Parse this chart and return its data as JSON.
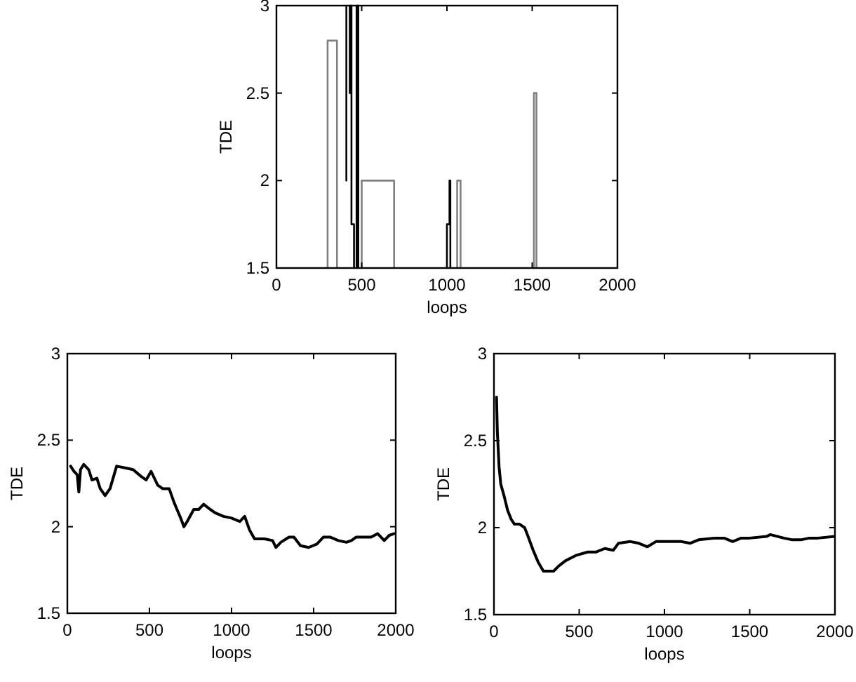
{
  "chart_data": [
    {
      "type": "line",
      "xlabel": "loops",
      "ylabel": "TDE",
      "xlim": [
        0,
        2000
      ],
      "ylim": [
        1.5,
        3
      ],
      "xticks": [
        0,
        500,
        1000,
        1500,
        2000
      ],
      "yticks": [
        1.5,
        2,
        2.5,
        3
      ],
      "grid": false,
      "line_style": "solid",
      "series": [
        {
          "color": "#808080",
          "x": [
            300,
            300,
            355,
            355
          ],
          "values": [
            1.5,
            2.8,
            2.8,
            1.5
          ]
        },
        {
          "color": "#808080",
          "x": [
            500,
            500,
            690,
            690
          ],
          "values": [
            1.5,
            2,
            2,
            1.5
          ]
        },
        {
          "color": "#808080",
          "x": [
            1060,
            1060,
            1080,
            1080
          ],
          "values": [
            1.5,
            2,
            2,
            1.5
          ]
        },
        {
          "color": "#808080",
          "x": [
            1510,
            1510,
            1525,
            1525
          ],
          "values": [
            1.5,
            2.5,
            2.5,
            1.5
          ]
        },
        {
          "color": "#000000",
          "x": [
            410,
            410
          ],
          "values": [
            2,
            3
          ]
        },
        {
          "color": "#000000",
          "x": [
            430,
            430,
            440,
            440,
            455,
            455
          ],
          "values": [
            2.5,
            3,
            3,
            1.75,
            1.75,
            1.5
          ]
        },
        {
          "color": "#000000",
          "x": [
            470,
            470,
            480,
            480
          ],
          "values": [
            1.5,
            3,
            3,
            1.5
          ]
        },
        {
          "color": "#000000",
          "x": [
            1000,
            1000,
            1015,
            1015,
            1020,
            1020
          ],
          "values": [
            1.5,
            1.75,
            1.75,
            2,
            2,
            1.5
          ]
        }
      ]
    },
    {
      "type": "line",
      "xlabel": "loops",
      "ylabel": "TDE",
      "xlim": [
        0,
        2000
      ],
      "ylim": [
        1.5,
        3
      ],
      "xticks": [
        0,
        500,
        1000,
        1500,
        2000
      ],
      "yticks": [
        1.5,
        2,
        2.5,
        3
      ],
      "grid": false,
      "line_style": "solid",
      "series": [
        {
          "color": "#000000",
          "x": [
            20,
            40,
            60,
            70,
            80,
            100,
            130,
            150,
            180,
            200,
            230,
            260,
            300,
            350,
            400,
            450,
            480,
            510,
            550,
            580,
            620,
            650,
            690,
            710,
            730,
            770,
            800,
            830,
            870,
            900,
            950,
            1000,
            1050,
            1080,
            1110,
            1140,
            1200,
            1250,
            1270,
            1300,
            1350,
            1380,
            1420,
            1470,
            1520,
            1560,
            1600,
            1650,
            1700,
            1730,
            1760,
            1800,
            1850,
            1890,
            1930,
            1960,
            1990
          ],
          "values": [
            2.35,
            2.32,
            2.3,
            2.2,
            2.33,
            2.36,
            2.33,
            2.27,
            2.28,
            2.22,
            2.18,
            2.22,
            2.35,
            2.34,
            2.33,
            2.29,
            2.27,
            2.32,
            2.24,
            2.22,
            2.22,
            2.14,
            2.05,
            2.0,
            2.03,
            2.1,
            2.1,
            2.13,
            2.1,
            2.08,
            2.06,
            2.05,
            2.03,
            2.06,
            1.98,
            1.93,
            1.93,
            1.92,
            1.88,
            1.91,
            1.94,
            1.94,
            1.89,
            1.88,
            1.9,
            1.94,
            1.94,
            1.92,
            1.91,
            1.92,
            1.94,
            1.94,
            1.94,
            1.96,
            1.92,
            1.95,
            1.96
          ]
        }
      ]
    },
    {
      "type": "line",
      "xlabel": "loops",
      "ylabel": "TDE",
      "xlim": [
        0,
        2000
      ],
      "ylim": [
        1.5,
        3
      ],
      "xticks": [
        0,
        500,
        1000,
        1500,
        2000
      ],
      "yticks": [
        1.5,
        2,
        2.5,
        3
      ],
      "grid": false,
      "line_style": "solid",
      "series": [
        {
          "color": "#000000",
          "x": [
            15,
            20,
            30,
            40,
            60,
            80,
            100,
            120,
            150,
            180,
            200,
            230,
            260,
            290,
            350,
            380,
            420,
            480,
            550,
            600,
            650,
            700,
            730,
            800,
            850,
            900,
            950,
            1000,
            1100,
            1150,
            1200,
            1300,
            1350,
            1400,
            1450,
            1500,
            1600,
            1620,
            1700,
            1750,
            1800,
            1850,
            1900,
            2000
          ],
          "values": [
            2.75,
            2.55,
            2.35,
            2.25,
            2.18,
            2.1,
            2.05,
            2.02,
            2.02,
            2.0,
            1.95,
            1.87,
            1.8,
            1.75,
            1.75,
            1.78,
            1.81,
            1.84,
            1.86,
            1.86,
            1.88,
            1.87,
            1.91,
            1.92,
            1.91,
            1.89,
            1.92,
            1.92,
            1.92,
            1.91,
            1.93,
            1.94,
            1.94,
            1.92,
            1.94,
            1.94,
            1.95,
            1.96,
            1.94,
            1.93,
            1.93,
            1.94,
            1.94,
            1.95
          ]
        }
      ]
    }
  ]
}
